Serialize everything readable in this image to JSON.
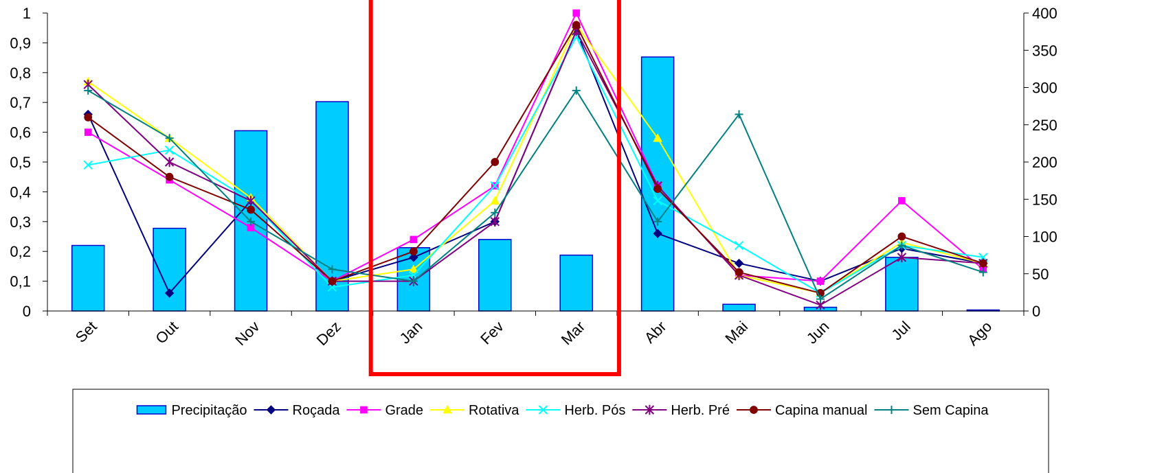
{
  "chart_data": {
    "type": "bar+line",
    "categories": [
      "Set",
      "Out",
      "Nov",
      "Dez",
      "Jan",
      "Fev",
      "Mar",
      "Abr",
      "Mai",
      "Jun",
      "Jul",
      "Ago"
    ],
    "y_left": {
      "ticks": [
        "0",
        "0,1",
        "0,2",
        "0,3",
        "0,4",
        "0,5",
        "0,6",
        "0,7",
        "0,8",
        "0,9",
        "1"
      ],
      "lim": [
        0,
        1
      ]
    },
    "y_right": {
      "ticks": [
        "0",
        "50",
        "100",
        "150",
        "200",
        "250",
        "300",
        "350",
        "400"
      ],
      "lim": [
        0,
        400
      ]
    },
    "bars": {
      "name": "Precipitação",
      "axis": "right",
      "color": "#00CCFF",
      "edge": "#0000CC",
      "values": [
        88,
        111,
        242,
        281,
        85,
        96,
        75,
        341,
        9,
        5,
        72,
        1
      ]
    },
    "series": [
      {
        "name": "Roçada",
        "color": "#000080",
        "marker": "diamond",
        "values": [
          0.66,
          0.06,
          0.37,
          0.1,
          0.18,
          0.3,
          0.94,
          0.26,
          0.16,
          0.1,
          0.21,
          0.16
        ]
      },
      {
        "name": "Grade",
        "color": "#FF00FF",
        "marker": "square",
        "values": [
          0.6,
          0.44,
          0.28,
          0.1,
          0.24,
          0.42,
          1.0,
          0.42,
          0.12,
          0.1,
          0.37,
          0.14
        ]
      },
      {
        "name": "Rotativa",
        "color": "#FFFF00",
        "marker": "triangle",
        "values": [
          0.77,
          0.58,
          0.38,
          0.1,
          0.14,
          0.37,
          0.96,
          0.58,
          0.12,
          0.06,
          0.23,
          0.16
        ]
      },
      {
        "name": "Herb. Pós",
        "color": "#00FFFF",
        "marker": "x",
        "values": [
          0.49,
          0.54,
          0.37,
          0.08,
          0.12,
          0.42,
          0.92,
          0.37,
          0.22,
          0.06,
          0.22,
          0.18
        ]
      },
      {
        "name": "Herb. Pré",
        "color": "#800080",
        "marker": "star",
        "values": [
          0.76,
          0.5,
          0.37,
          0.1,
          0.1,
          0.3,
          0.94,
          0.42,
          0.12,
          0.02,
          0.18,
          0.16
        ]
      },
      {
        "name": "Capina manual",
        "color": "#800000",
        "marker": "circle",
        "values": [
          0.65,
          0.45,
          0.34,
          0.1,
          0.2,
          0.5,
          0.96,
          0.41,
          0.13,
          0.06,
          0.25,
          0.16
        ]
      },
      {
        "name": "Sem Capina",
        "color": "#008080",
        "marker": "plus",
        "values": [
          0.74,
          0.58,
          0.3,
          0.14,
          0.1,
          0.33,
          0.74,
          0.3,
          0.66,
          0.04,
          0.22,
          0.13
        ]
      }
    ],
    "highlight": {
      "from": "Jan",
      "to": "Mar",
      "color": "#FF0000"
    },
    "legend": "bottom",
    "grid": false
  }
}
